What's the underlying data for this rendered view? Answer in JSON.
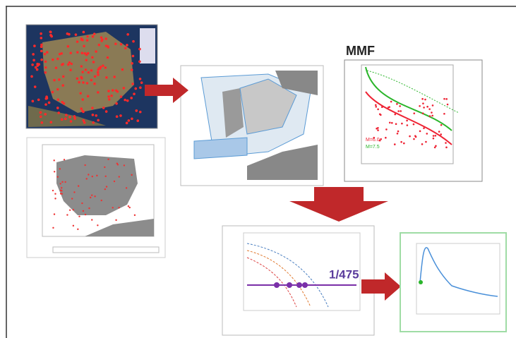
{
  "panels": {
    "mmf": {
      "title": "MMF",
      "legend": [
        "M=6.0",
        "M=7.5"
      ]
    },
    "hazard": {
      "probability": "1/475"
    }
  }
}
